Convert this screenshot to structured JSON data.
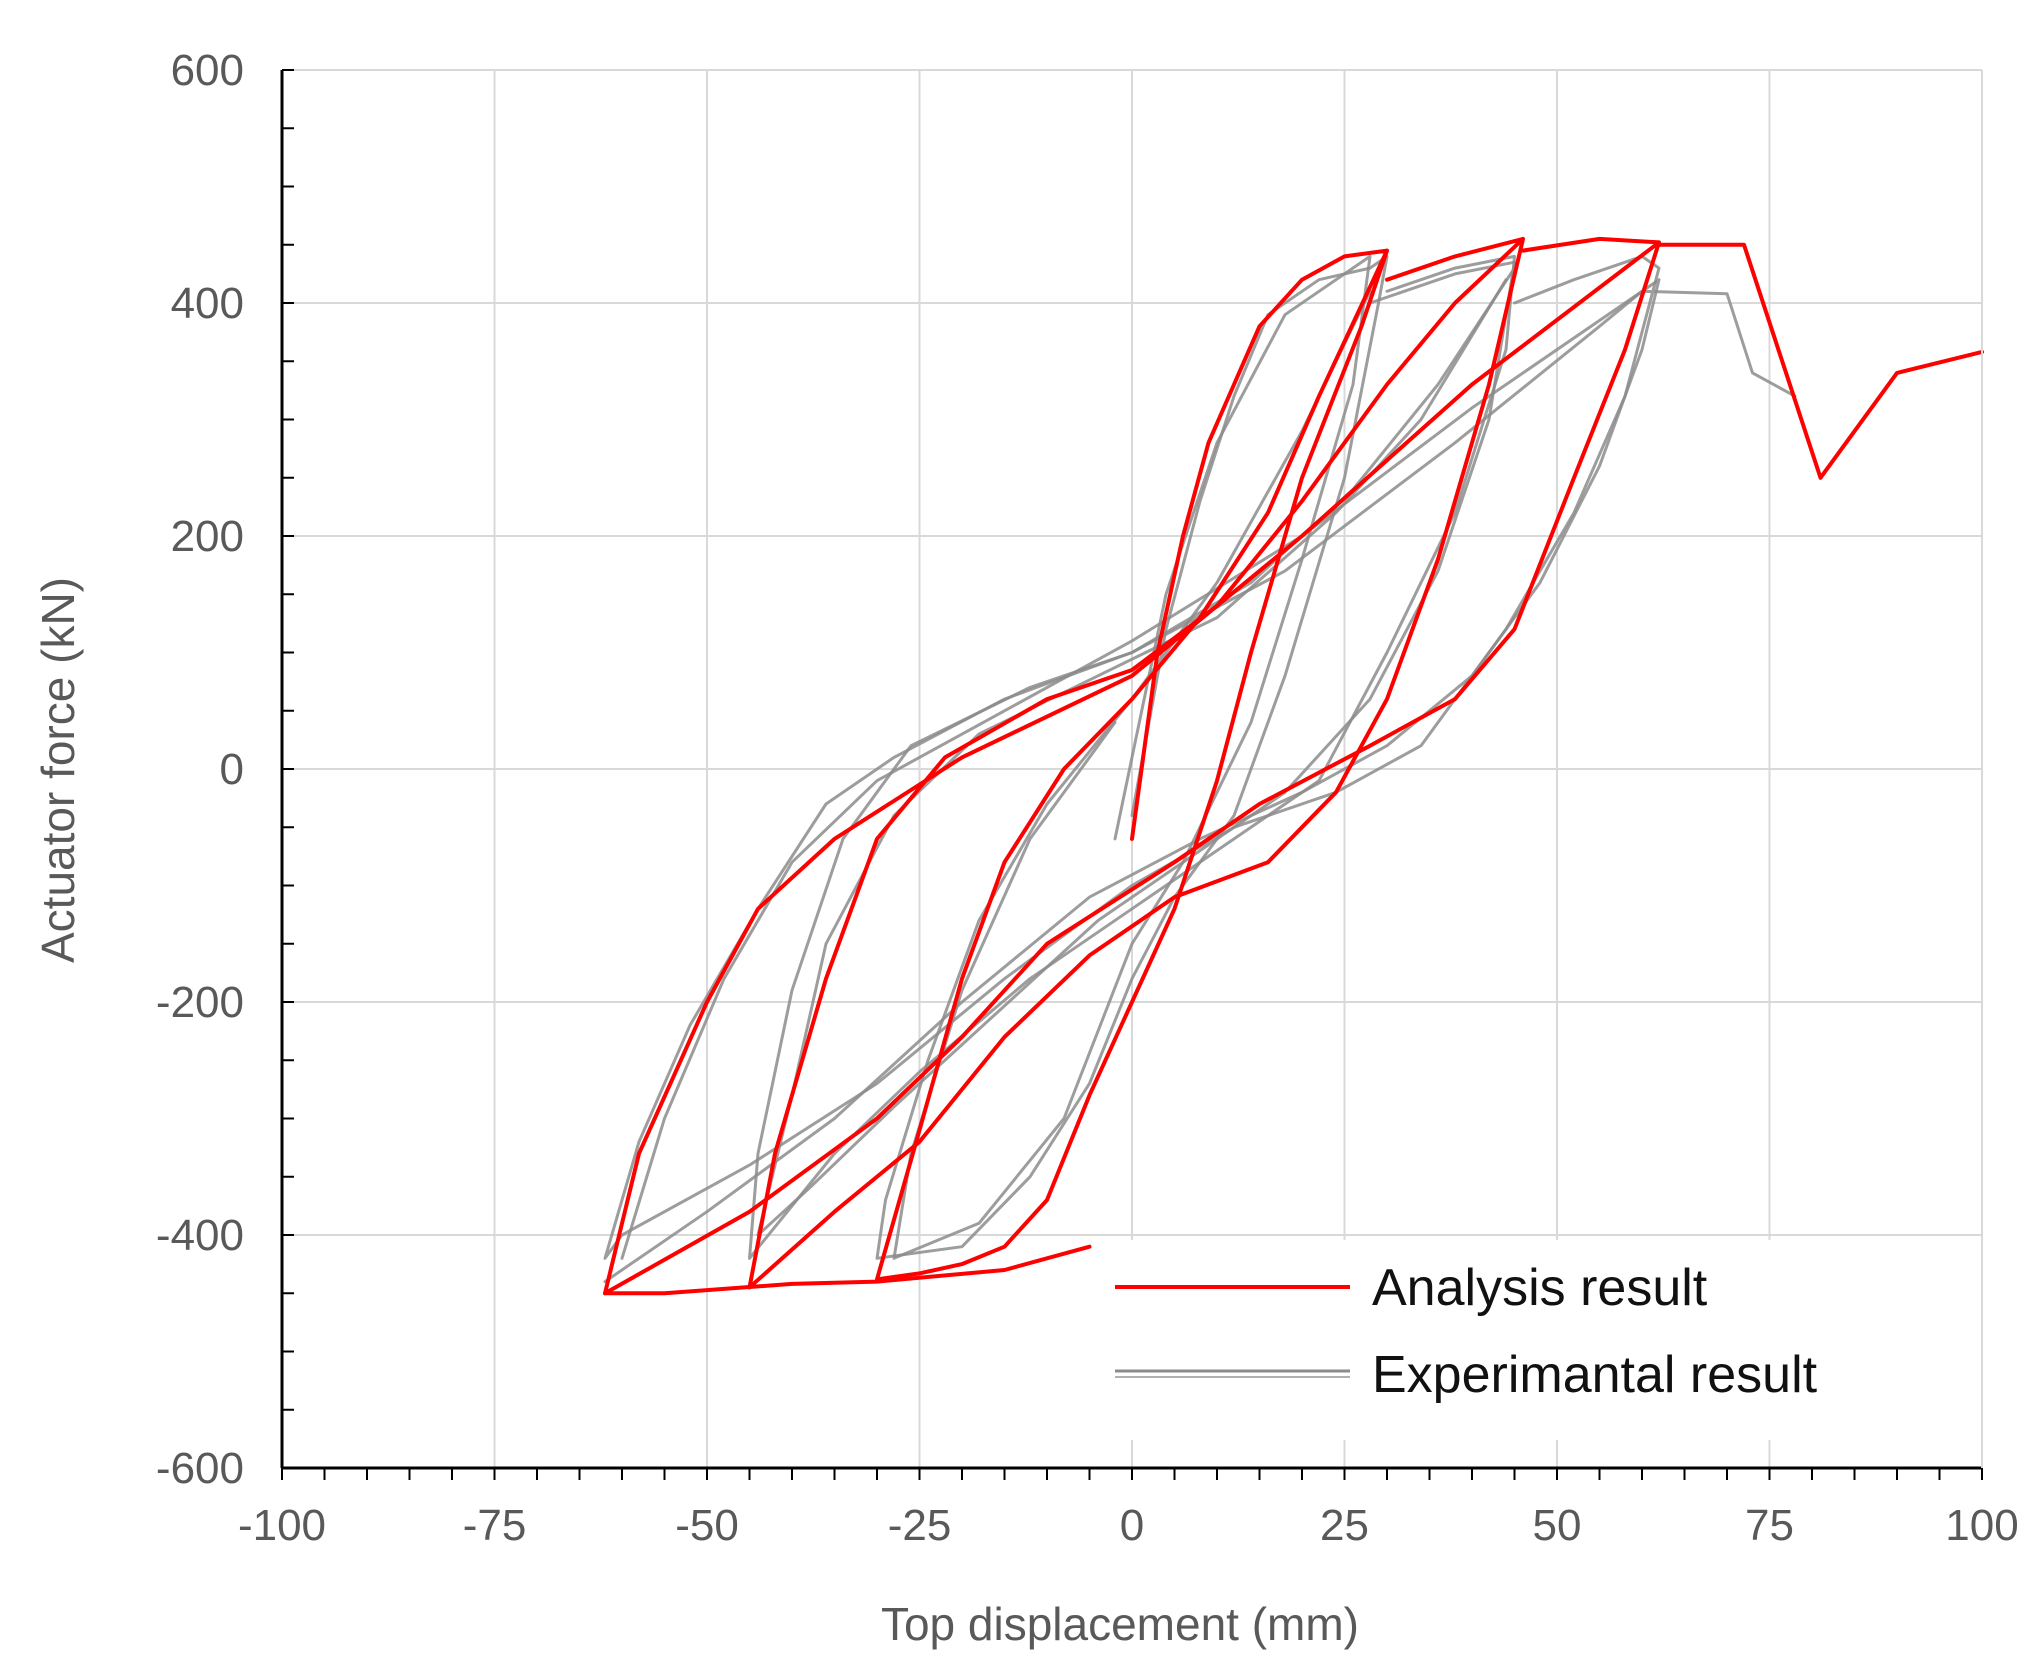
{
  "chart_data": {
    "type": "line",
    "title": "",
    "xlabel": "Top displacement (mm)",
    "ylabel": "Actuator force (kN)",
    "xlim": [
      -100,
      100
    ],
    "ylim": [
      -600,
      600
    ],
    "x_major_ticks": [
      -100,
      -75,
      -50,
      -25,
      0,
      25,
      50,
      75,
      100
    ],
    "y_major_ticks": [
      -600,
      -400,
      -200,
      0,
      200,
      400,
      600
    ],
    "x_minor_step": 5,
    "y_minor_step": 50,
    "grid": true,
    "legend_position": "bottom-right",
    "colors": {
      "analysis": "#ff0000",
      "experimental": "#8c8c8c",
      "grid": "#d9d9d9",
      "axis": "#000000"
    },
    "series": [
      {
        "name": "Analysis result",
        "loops": [
          [
            [
              0,
              -60
            ],
            [
              3,
              100
            ],
            [
              6,
              200
            ],
            [
              9,
              280
            ],
            [
              12,
              330
            ],
            [
              15,
              380
            ],
            [
              20,
              420
            ],
            [
              25,
              440
            ],
            [
              30,
              445
            ],
            [
              27,
              380
            ],
            [
              20,
              250
            ],
            [
              14,
              100
            ],
            [
              10,
              -10
            ],
            [
              5,
              -120
            ],
            [
              0,
              -200
            ],
            [
              -5,
              -280
            ],
            [
              -10,
              -370
            ],
            [
              -15,
              -410
            ],
            [
              -20,
              -425
            ],
            [
              -25,
              -433
            ],
            [
              -30,
              -438
            ],
            [
              -25,
              -310
            ],
            [
              -20,
              -180
            ],
            [
              -15,
              -80
            ],
            [
              -8,
              0
            ],
            [
              0,
              60
            ],
            [
              8,
              130
            ],
            [
              16,
              220
            ],
            [
              22,
              320
            ],
            [
              30,
              445
            ]
          ],
          [
            [
              30,
              420
            ],
            [
              38,
              440
            ],
            [
              46,
              455
            ],
            [
              42,
              330
            ],
            [
              36,
              180
            ],
            [
              30,
              60
            ],
            [
              24,
              -20
            ],
            [
              16,
              -80
            ],
            [
              5,
              -110
            ],
            [
              -5,
              -160
            ],
            [
              -15,
              -230
            ],
            [
              -25,
              -320
            ],
            [
              -35,
              -380
            ],
            [
              -45,
              -445
            ],
            [
              -42,
              -330
            ],
            [
              -36,
              -180
            ],
            [
              -30,
              -60
            ],
            [
              -22,
              10
            ],
            [
              -10,
              60
            ],
            [
              0,
              85
            ],
            [
              10,
              140
            ],
            [
              20,
              230
            ],
            [
              30,
              330
            ],
            [
              38,
              400
            ],
            [
              46,
              455
            ]
          ],
          [
            [
              46,
              445
            ],
            [
              55,
              455
            ],
            [
              62,
              452
            ],
            [
              58,
              360
            ],
            [
              52,
              250
            ],
            [
              45,
              120
            ],
            [
              38,
              60
            ],
            [
              28,
              20
            ],
            [
              15,
              -30
            ],
            [
              5,
              -80
            ],
            [
              -10,
              -150
            ],
            [
              -20,
              -230
            ],
            [
              -30,
              -300
            ],
            [
              -45,
              -380
            ],
            [
              -62,
              -450
            ],
            [
              -58,
              -330
            ],
            [
              -50,
              -200
            ],
            [
              -44,
              -120
            ],
            [
              -35,
              -60
            ],
            [
              -20,
              10
            ],
            [
              0,
              80
            ],
            [
              20,
              200
            ],
            [
              40,
              330
            ],
            [
              62,
              452
            ]
          ],
          [
            [
              -62,
              -450
            ],
            [
              -55,
              -450
            ],
            [
              -40,
              -442
            ],
            [
              -30,
              -440
            ],
            [
              -15,
              -430
            ],
            [
              -5,
              -410
            ]
          ],
          [
            [
              62,
              450
            ],
            [
              72,
              450
            ],
            [
              81,
              250
            ],
            [
              90,
              340
            ],
            [
              100,
              358
            ]
          ]
        ]
      },
      {
        "name": "Experimantal result",
        "loops": [
          [
            [
              0,
              -40
            ],
            [
              4,
              120
            ],
            [
              8,
              230
            ],
            [
              12,
              320
            ],
            [
              16,
              390
            ],
            [
              22,
              420
            ],
            [
              28,
              430
            ],
            [
              30,
              440
            ],
            [
              29,
              400
            ],
            [
              25,
              250
            ],
            [
              18,
              80
            ],
            [
              12,
              -40
            ],
            [
              5,
              -110
            ],
            [
              0,
              -180
            ],
            [
              -5,
              -270
            ],
            [
              -12,
              -350
            ],
            [
              -20,
              -410
            ],
            [
              -30,
              -420
            ],
            [
              -29,
              -370
            ],
            [
              -24,
              -250
            ],
            [
              -18,
              -130
            ],
            [
              -10,
              -30
            ],
            [
              0,
              60
            ],
            [
              10,
              160
            ],
            [
              20,
              290
            ],
            [
              28,
              410
            ]
          ],
          [
            [
              -2,
              -60
            ],
            [
              4,
              150
            ],
            [
              10,
              280
            ],
            [
              18,
              390
            ],
            [
              28,
              440
            ],
            [
              26,
              330
            ],
            [
              20,
              180
            ],
            [
              14,
              40
            ],
            [
              6,
              -80
            ],
            [
              0,
              -150
            ],
            [
              -8,
              -300
            ],
            [
              -18,
              -390
            ],
            [
              -28,
              -420
            ],
            [
              -26,
              -330
            ],
            [
              -20,
              -190
            ],
            [
              -12,
              -60
            ],
            [
              -2,
              40
            ]
          ],
          [
            [
              30,
              410
            ],
            [
              38,
              430
            ],
            [
              45,
              440
            ],
            [
              44,
              360
            ],
            [
              38,
              220
            ],
            [
              30,
              100
            ],
            [
              22,
              -10
            ],
            [
              12,
              -60
            ],
            [
              0,
              -120
            ],
            [
              -12,
              -180
            ],
            [
              -25,
              -260
            ],
            [
              -35,
              -330
            ],
            [
              -45,
              -420
            ],
            [
              -44,
              -330
            ],
            [
              -40,
              -190
            ],
            [
              -34,
              -60
            ],
            [
              -26,
              20
            ],
            [
              -12,
              70
            ],
            [
              0,
              100
            ],
            [
              14,
              160
            ],
            [
              26,
              240
            ],
            [
              36,
              330
            ],
            [
              45,
              430
            ]
          ],
          [
            [
              28,
              400
            ],
            [
              38,
              425
            ],
            [
              45,
              435
            ],
            [
              42,
              300
            ],
            [
              36,
              170
            ],
            [
              28,
              60
            ],
            [
              18,
              -20
            ],
            [
              8,
              -70
            ],
            [
              -4,
              -130
            ],
            [
              -16,
              -210
            ],
            [
              -28,
              -290
            ],
            [
              -38,
              -360
            ],
            [
              -44,
              -400
            ],
            [
              -40,
              -280
            ],
            [
              -36,
              -150
            ],
            [
              -28,
              -40
            ],
            [
              -18,
              30
            ],
            [
              -4,
              80
            ],
            [
              10,
              130
            ],
            [
              24,
              220
            ],
            [
              34,
              300
            ],
            [
              44,
              420
            ]
          ],
          [
            [
              45,
              400
            ],
            [
              52,
              420
            ],
            [
              60,
              440
            ],
            [
              62,
              430
            ],
            [
              58,
              320
            ],
            [
              52,
              220
            ],
            [
              44,
              120
            ],
            [
              34,
              20
            ],
            [
              24,
              -20
            ],
            [
              12,
              -50
            ],
            [
              0,
              -100
            ],
            [
              -15,
              -180
            ],
            [
              -30,
              -270
            ],
            [
              -45,
              -340
            ],
            [
              -60,
              -400
            ],
            [
              -62,
              -420
            ],
            [
              -58,
              -320
            ],
            [
              -52,
              -220
            ],
            [
              -44,
              -120
            ],
            [
              -36,
              -30
            ],
            [
              -28,
              10
            ],
            [
              -15,
              60
            ],
            [
              0,
              100
            ],
            [
              18,
              170
            ],
            [
              38,
              280
            ],
            [
              55,
              380
            ],
            [
              60,
              410
            ],
            [
              70,
              408
            ],
            [
              73,
              340
            ],
            [
              78,
              320
            ]
          ],
          [
            [
              -60,
              -420
            ],
            [
              -55,
              -300
            ],
            [
              -48,
              -180
            ],
            [
              -40,
              -80
            ],
            [
              -30,
              -10
            ],
            [
              -15,
              50
            ],
            [
              0,
              110
            ],
            [
              20,
              200
            ],
            [
              40,
              310
            ],
            [
              58,
              400
            ],
            [
              62,
              420
            ],
            [
              60,
              360
            ],
            [
              55,
              260
            ],
            [
              48,
              160
            ],
            [
              40,
              80
            ],
            [
              30,
              20
            ],
            [
              20,
              -20
            ],
            [
              8,
              -60
            ],
            [
              -5,
              -110
            ],
            [
              -20,
              -200
            ],
            [
              -35,
              -300
            ],
            [
              -50,
              -380
            ],
            [
              -62,
              -440
            ]
          ]
        ]
      }
    ]
  }
}
